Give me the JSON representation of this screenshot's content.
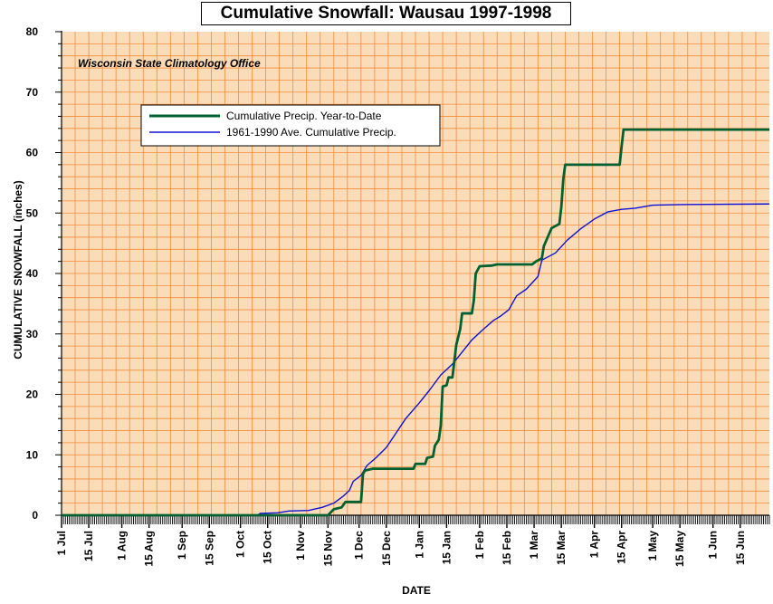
{
  "chart_data": {
    "type": "line",
    "title": "Cumulative Snowfall: Wausau 1997-1998",
    "annotation": "Wisconsin State Climatology Office",
    "xlabel": "DATE",
    "ylabel": "CUMULATIVE SNOWFALL (inches)",
    "ylim": [
      0,
      80
    ],
    "xlim": [
      "1997-07-01",
      "1998-06-30"
    ],
    "y_ticks": [
      "0",
      "10",
      "20",
      "30",
      "40",
      "50",
      "60",
      "70",
      "80"
    ],
    "x_ticks": [
      {
        "label": "1 Jul",
        "date": "1997-07-01"
      },
      {
        "label": "15 Jul",
        "date": "1997-07-15"
      },
      {
        "label": "1 Aug",
        "date": "1997-08-01"
      },
      {
        "label": "15 Aug",
        "date": "1997-08-15"
      },
      {
        "label": "1 Sep",
        "date": "1997-09-01"
      },
      {
        "label": "15 Sep",
        "date": "1997-09-15"
      },
      {
        "label": "1 Oct",
        "date": "1997-10-01"
      },
      {
        "label": "15 Oct",
        "date": "1997-10-15"
      },
      {
        "label": "1 Nov",
        "date": "1997-11-01"
      },
      {
        "label": "15 Nov",
        "date": "1997-11-15"
      },
      {
        "label": "1 Dec",
        "date": "1997-12-01"
      },
      {
        "label": "15 Dec",
        "date": "1997-12-15"
      },
      {
        "label": "1 Jan",
        "date": "1998-01-01"
      },
      {
        "label": "15 Jan",
        "date": "1998-01-15"
      },
      {
        "label": "1 Feb",
        "date": "1998-02-01"
      },
      {
        "label": "15 Feb",
        "date": "1998-02-15"
      },
      {
        "label": "1 Mar",
        "date": "1998-03-01"
      },
      {
        "label": "15 Mar",
        "date": "1998-03-15"
      },
      {
        "label": "1 Apr",
        "date": "1998-04-01"
      },
      {
        "label": "15 Apr",
        "date": "1998-04-15"
      },
      {
        "label": "1 May",
        "date": "1998-05-01"
      },
      {
        "label": "15 May",
        "date": "1998-05-15"
      },
      {
        "label": "1 Jun",
        "date": "1998-06-01"
      },
      {
        "label": "15 Jun",
        "date": "1998-06-15"
      }
    ],
    "grid": true,
    "legend_position": "upper-left",
    "colors": {
      "plot_background": "#fbdcb8",
      "grid_line": "#f08c3c",
      "axis": "#000000"
    },
    "series": [
      {
        "name": "Cumulative Precip. Year-to-Date",
        "color": "#006030",
        "style": "step",
        "points": [
          [
            "1997-07-01",
            0
          ],
          [
            "1997-11-15",
            0
          ],
          [
            "1997-11-18",
            1
          ],
          [
            "1997-11-22",
            1.3
          ],
          [
            "1997-11-24",
            2.2
          ],
          [
            "1997-12-02",
            2.2
          ],
          [
            "1997-12-03",
            6.8
          ],
          [
            "1997-12-04",
            7.4
          ],
          [
            "1997-12-08",
            7.7
          ],
          [
            "1997-12-29",
            7.7
          ],
          [
            "1997-12-30",
            8.5
          ],
          [
            "1998-01-04",
            8.5
          ],
          [
            "1998-01-05",
            9.5
          ],
          [
            "1998-01-08",
            9.7
          ],
          [
            "1998-01-09",
            11.5
          ],
          [
            "1998-01-11",
            12.5
          ],
          [
            "1998-01-12",
            14.8
          ],
          [
            "1998-01-13",
            21.3
          ],
          [
            "1998-01-15",
            21.5
          ],
          [
            "1998-01-16",
            22.8
          ],
          [
            "1998-01-18",
            22.8
          ],
          [
            "1998-01-20",
            28.2
          ],
          [
            "1998-01-22",
            30.8
          ],
          [
            "1998-01-23",
            33.4
          ],
          [
            "1998-01-28",
            33.4
          ],
          [
            "1998-01-29",
            35.5
          ],
          [
            "1998-01-30",
            40
          ],
          [
            "1998-02-01",
            41.2
          ],
          [
            "1998-02-07",
            41.3
          ],
          [
            "1998-02-10",
            41.5
          ],
          [
            "1998-02-28",
            41.5
          ],
          [
            "1998-03-02",
            42
          ],
          [
            "1998-03-05",
            42.5
          ],
          [
            "1998-03-06",
            44.5
          ],
          [
            "1998-03-08",
            46
          ],
          [
            "1998-03-10",
            47.5
          ],
          [
            "1998-03-14",
            48.2
          ],
          [
            "1998-03-15",
            51
          ],
          [
            "1998-03-16",
            55.5
          ],
          [
            "1998-03-17",
            58
          ],
          [
            "1998-04-14",
            58
          ],
          [
            "1998-04-15",
            61
          ],
          [
            "1998-04-16",
            63.8
          ],
          [
            "1998-06-30",
            63.8
          ]
        ]
      },
      {
        "name": "1961-1990 Ave. Cumulative Precip.",
        "color": "#1010d0",
        "style": "line",
        "points": [
          [
            "1997-07-01",
            0
          ],
          [
            "1997-10-10",
            0
          ],
          [
            "1997-10-11",
            0.3
          ],
          [
            "1997-10-20",
            0.4
          ],
          [
            "1997-10-26",
            0.7
          ],
          [
            "1997-11-05",
            0.8
          ],
          [
            "1997-11-12",
            1.3
          ],
          [
            "1997-11-18",
            2
          ],
          [
            "1997-11-23",
            3.2
          ],
          [
            "1997-11-26",
            4.1
          ],
          [
            "1997-11-28",
            5.6
          ],
          [
            "1997-12-02",
            6.6
          ],
          [
            "1997-12-05",
            8.2
          ],
          [
            "1997-12-10",
            9.6
          ],
          [
            "1997-12-15",
            11.2
          ],
          [
            "1997-12-20",
            13.6
          ],
          [
            "1997-12-25",
            16
          ],
          [
            "1998-01-01",
            18.6
          ],
          [
            "1998-01-06",
            20.6
          ],
          [
            "1998-01-12",
            23.2
          ],
          [
            "1998-01-18",
            25
          ],
          [
            "1998-01-23",
            27
          ],
          [
            "1998-01-28",
            29
          ],
          [
            "1998-02-02",
            30.5
          ],
          [
            "1998-02-08",
            32.2
          ],
          [
            "1998-02-12",
            33
          ],
          [
            "1998-02-16",
            34
          ],
          [
            "1998-02-20",
            36.3
          ],
          [
            "1998-02-25",
            37.4
          ],
          [
            "1998-03-01",
            38.8
          ],
          [
            "1998-03-03",
            39.5
          ],
          [
            "1998-03-05",
            42.2
          ],
          [
            "1998-03-12",
            43.4
          ],
          [
            "1998-03-18",
            45.5
          ],
          [
            "1998-03-25",
            47.4
          ],
          [
            "1998-04-01",
            49
          ],
          [
            "1998-04-08",
            50.2
          ],
          [
            "1998-04-15",
            50.6
          ],
          [
            "1998-04-22",
            50.8
          ],
          [
            "1998-05-01",
            51.3
          ],
          [
            "1998-05-15",
            51.4
          ],
          [
            "1998-06-30",
            51.5
          ]
        ]
      }
    ]
  }
}
